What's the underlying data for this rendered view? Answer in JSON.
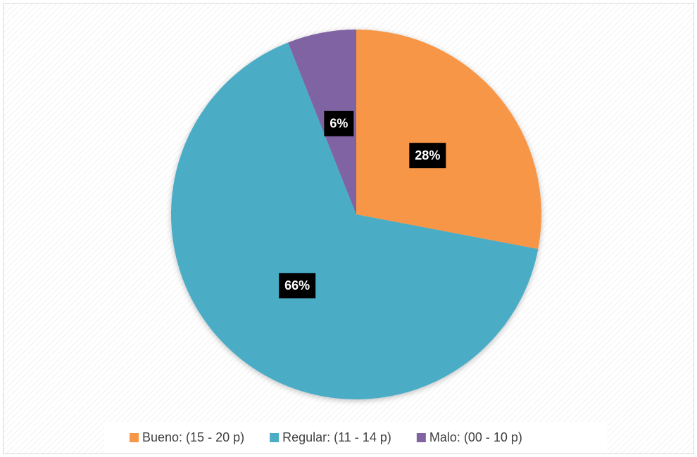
{
  "chart_data": {
    "type": "pie",
    "categories": [
      "Bueno: (15 - 20 p)",
      "Regular: (11 - 14 p)",
      "Malo: (00 - 10 p)"
    ],
    "values": [
      28,
      66,
      6
    ],
    "value_labels": [
      "28%",
      "66%",
      "6%"
    ],
    "colors": [
      "#f79646",
      "#4bacc6",
      "#8064a2"
    ],
    "legend": "bottom"
  }
}
